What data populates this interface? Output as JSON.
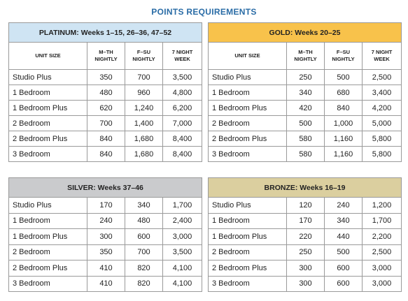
{
  "title": "POINTS REQUIREMENTS",
  "tables": [
    {
      "title": "PLATINUM: Weeks 1–15, 26–36, 47–52",
      "columns": [
        "UNIT SIZE",
        "M–TH NIGHTLY",
        "F–SU NIGHTLY",
        "7 NIGHT WEEK"
      ],
      "rows": [
        [
          "Studio Plus",
          "350",
          "700",
          "3,500"
        ],
        [
          "1 Bedroom",
          "480",
          "960",
          "4,800"
        ],
        [
          "1 Bedroom Plus",
          "620",
          "1,240",
          "6,200"
        ],
        [
          "2 Bedroom",
          "700",
          "1,400",
          "7,000"
        ],
        [
          "2 Bedroom Plus",
          "840",
          "1,680",
          "8,400"
        ],
        [
          "3 Bedroom",
          "840",
          "1,680",
          "8,400"
        ]
      ]
    },
    {
      "title": "GOLD: Weeks 20–25",
      "columns": [
        "UNIT SIZE",
        "M–TH NIGHTLY",
        "F–SU NIGHTLY",
        "7 NIGHT WEEK"
      ],
      "rows": [
        [
          "Studio Plus",
          "250",
          "500",
          "2,500"
        ],
        [
          "1 Bedroom",
          "340",
          "680",
          "3,400"
        ],
        [
          "1 Bedroom Plus",
          "420",
          "840",
          "4,200"
        ],
        [
          "2 Bedroom",
          "500",
          "1,000",
          "5,000"
        ],
        [
          "2 Bedroom Plus",
          "580",
          "1,160",
          "5,800"
        ],
        [
          "3 Bedroom",
          "580",
          "1,160",
          "5,800"
        ]
      ]
    },
    {
      "title": "SILVER: Weeks 37–46",
      "rows": [
        [
          "Studio Plus",
          "170",
          "340",
          "1,700"
        ],
        [
          "1 Bedroom",
          "240",
          "480",
          "2,400"
        ],
        [
          "1 Bedroom Plus",
          "300",
          "600",
          "3,000"
        ],
        [
          "2 Bedroom",
          "350",
          "700",
          "3,500"
        ],
        [
          "2 Bedroom Plus",
          "410",
          "820",
          "4,100"
        ],
        [
          "3 Bedroom",
          "410",
          "820",
          "4,100"
        ]
      ]
    },
    {
      "title": "BRONZE: Weeks 16–19",
      "rows": [
        [
          "Studio Plus",
          "120",
          "240",
          "1,200"
        ],
        [
          "1 Bedroom",
          "170",
          "340",
          "1,700"
        ],
        [
          "1 Bedroom Plus",
          "220",
          "440",
          "2,200"
        ],
        [
          "2 Bedroom",
          "250",
          "500",
          "2,500"
        ],
        [
          "2 Bedroom Plus",
          "300",
          "600",
          "3,000"
        ],
        [
          "3 Bedroom",
          "300",
          "600",
          "3,000"
        ]
      ]
    }
  ]
}
